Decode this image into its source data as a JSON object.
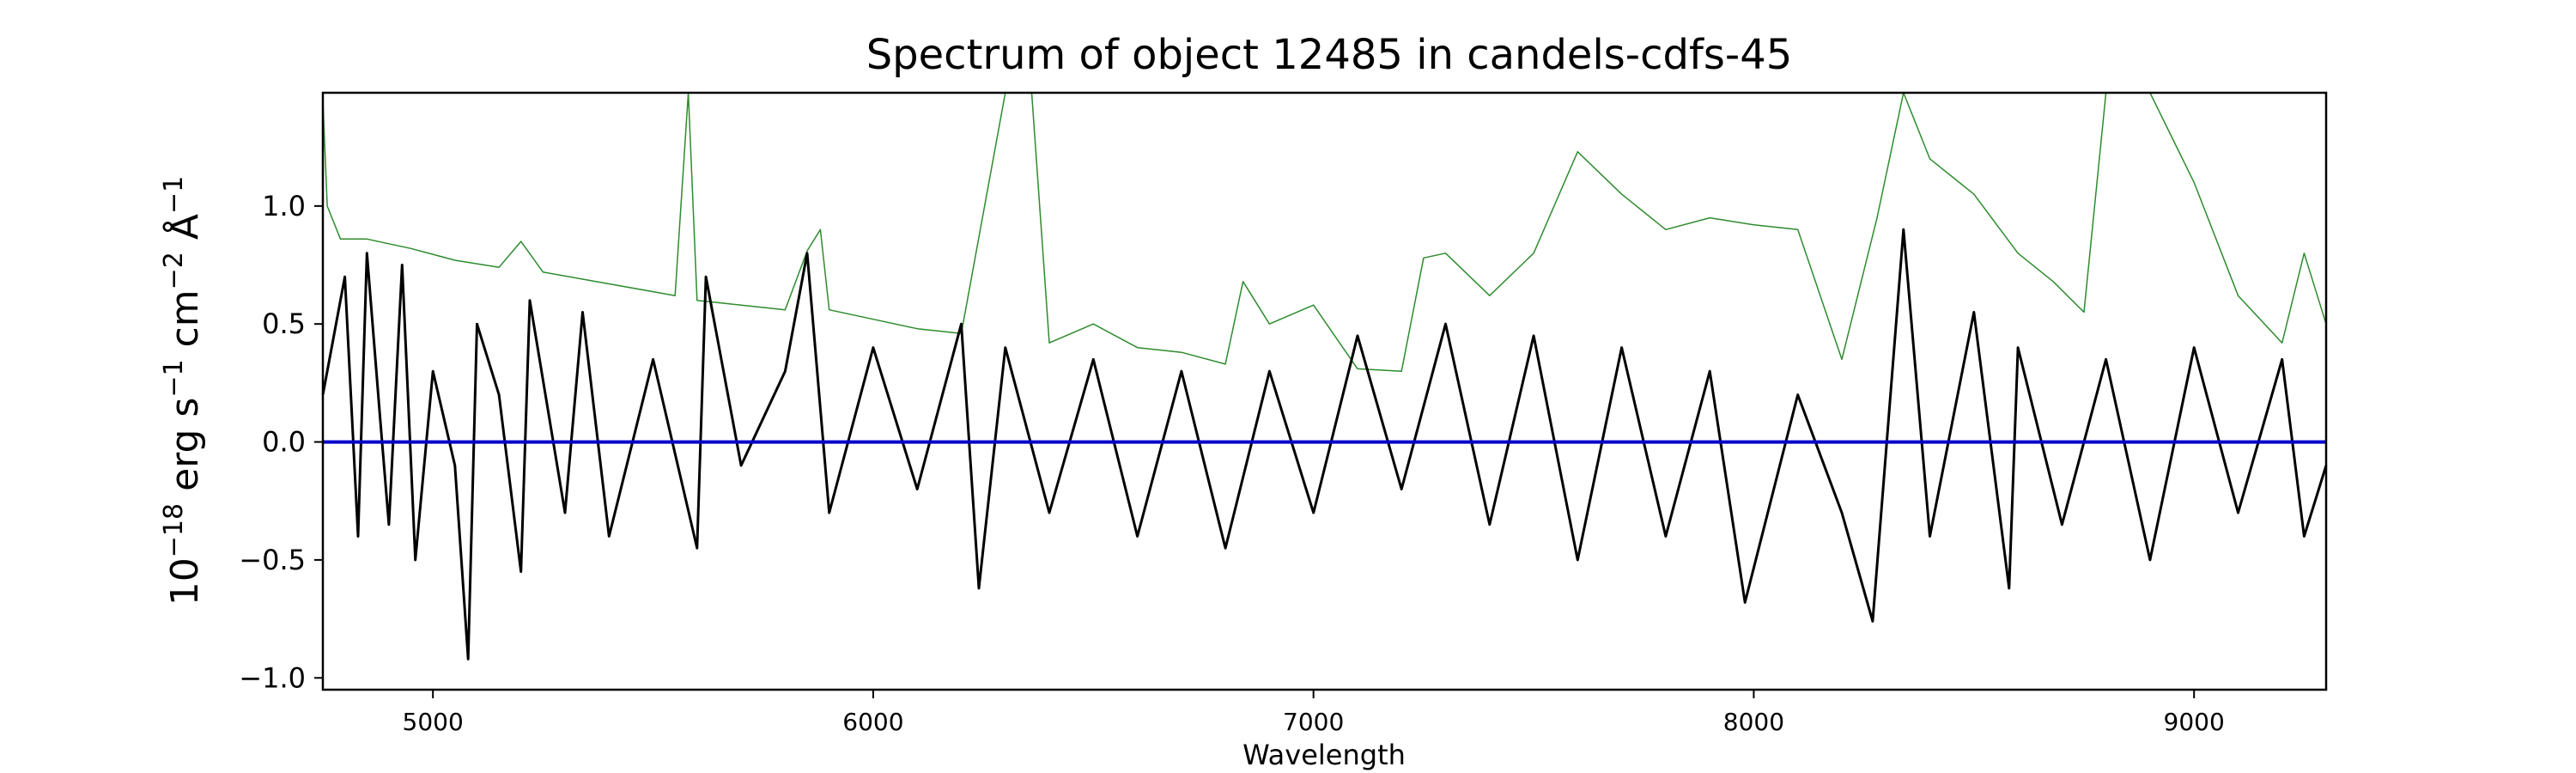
{
  "chart_data": {
    "type": "line",
    "title": "Spectrum of object 12485 in candels-cdfs-45",
    "xlabel": "Wavelength",
    "ylabel": {
      "base": "10",
      "exp": "−18",
      "unit1": "erg s",
      "exp1": "−1",
      "unit2": "cm",
      "exp2": "−2",
      "unit3": "Å",
      "exp3": "−1"
    },
    "xlim": [
      4750,
      9300
    ],
    "ylim": [
      -1.05,
      1.48
    ],
    "xticks": [
      5000,
      6000,
      7000,
      8000,
      9000
    ],
    "xtick_labels": [
      "5000",
      "6000",
      "7000",
      "8000",
      "9000"
    ],
    "yticks": [
      -1.0,
      -0.5,
      0.0,
      0.5,
      1.0
    ],
    "ytick_labels": [
      "−1.0",
      "−0.5",
      "0.0",
      "0.5",
      "1.0"
    ],
    "grid": false,
    "series": [
      {
        "role": "noise",
        "color": "#2e8b2e",
        "x": [
          4750,
          4760,
          4790,
          4850,
          4950,
          5050,
          5150,
          5200,
          5250,
          5400,
          5550,
          5580,
          5600,
          5700,
          5800,
          5850,
          5880,
          5900,
          6000,
          6100,
          6200,
          6300,
          6360,
          6400,
          6500,
          6600,
          6700,
          6800,
          6840,
          6900,
          7000,
          7100,
          7200,
          7250,
          7300,
          7400,
          7500,
          7600,
          7700,
          7800,
          7900,
          8000,
          8100,
          8200,
          8280,
          8340,
          8400,
          8500,
          8600,
          8680,
          8750,
          8800,
          8850,
          8900,
          9000,
          9100,
          9200,
          9250,
          9300
        ],
        "y": [
          1.45,
          1.0,
          0.86,
          0.86,
          0.82,
          0.77,
          0.74,
          0.85,
          0.72,
          0.67,
          0.62,
          1.48,
          0.6,
          0.58,
          0.56,
          0.81,
          0.9,
          0.56,
          0.52,
          0.48,
          0.46,
          1.48,
          1.48,
          0.42,
          0.5,
          0.4,
          0.38,
          0.33,
          0.68,
          0.5,
          0.58,
          0.31,
          0.3,
          0.78,
          0.8,
          0.62,
          0.8,
          1.23,
          1.05,
          0.9,
          0.95,
          0.92,
          0.9,
          0.35,
          0.95,
          1.48,
          1.2,
          1.05,
          0.8,
          0.68,
          0.55,
          1.48,
          1.48,
          1.48,
          1.1,
          0.62,
          0.42,
          0.8,
          0.5
        ]
      },
      {
        "role": "flux",
        "color": "#000000",
        "x": [
          4750,
          4800,
          4830,
          4850,
          4880,
          4900,
          4930,
          4960,
          5000,
          5050,
          5080,
          5100,
          5150,
          5200,
          5220,
          5300,
          5340,
          5400,
          5500,
          5600,
          5620,
          5700,
          5800,
          5850,
          5900,
          6000,
          6100,
          6200,
          6240,
          6300,
          6400,
          6500,
          6600,
          6700,
          6800,
          6900,
          7000,
          7100,
          7200,
          7300,
          7400,
          7500,
          7600,
          7700,
          7800,
          7900,
          7980,
          8100,
          8200,
          8270,
          8340,
          8400,
          8500,
          8580,
          8600,
          8700,
          8800,
          8900,
          9000,
          9100,
          9200,
          9250,
          9300
        ],
        "y": [
          0.2,
          0.7,
          -0.4,
          0.8,
          0.1,
          -0.35,
          0.75,
          -0.5,
          0.3,
          -0.1,
          -0.92,
          0.5,
          0.2,
          -0.55,
          0.6,
          -0.3,
          0.55,
          -0.4,
          0.35,
          -0.45,
          0.7,
          -0.1,
          0.3,
          0.8,
          -0.3,
          0.4,
          -0.2,
          0.5,
          -0.62,
          0.4,
          -0.3,
          0.35,
          -0.4,
          0.3,
          -0.45,
          0.3,
          -0.3,
          0.45,
          -0.2,
          0.5,
          -0.35,
          0.45,
          -0.5,
          0.4,
          -0.4,
          0.3,
          -0.68,
          0.2,
          -0.3,
          -0.76,
          0.9,
          -0.4,
          0.55,
          -0.62,
          0.4,
          -0.35,
          0.35,
          -0.5,
          0.4,
          -0.3,
          0.35,
          -0.4,
          -0.1
        ]
      },
      {
        "role": "zero",
        "color": "#0000cc",
        "x": [
          4750,
          9300
        ],
        "y": [
          0.0,
          0.0
        ]
      }
    ]
  }
}
